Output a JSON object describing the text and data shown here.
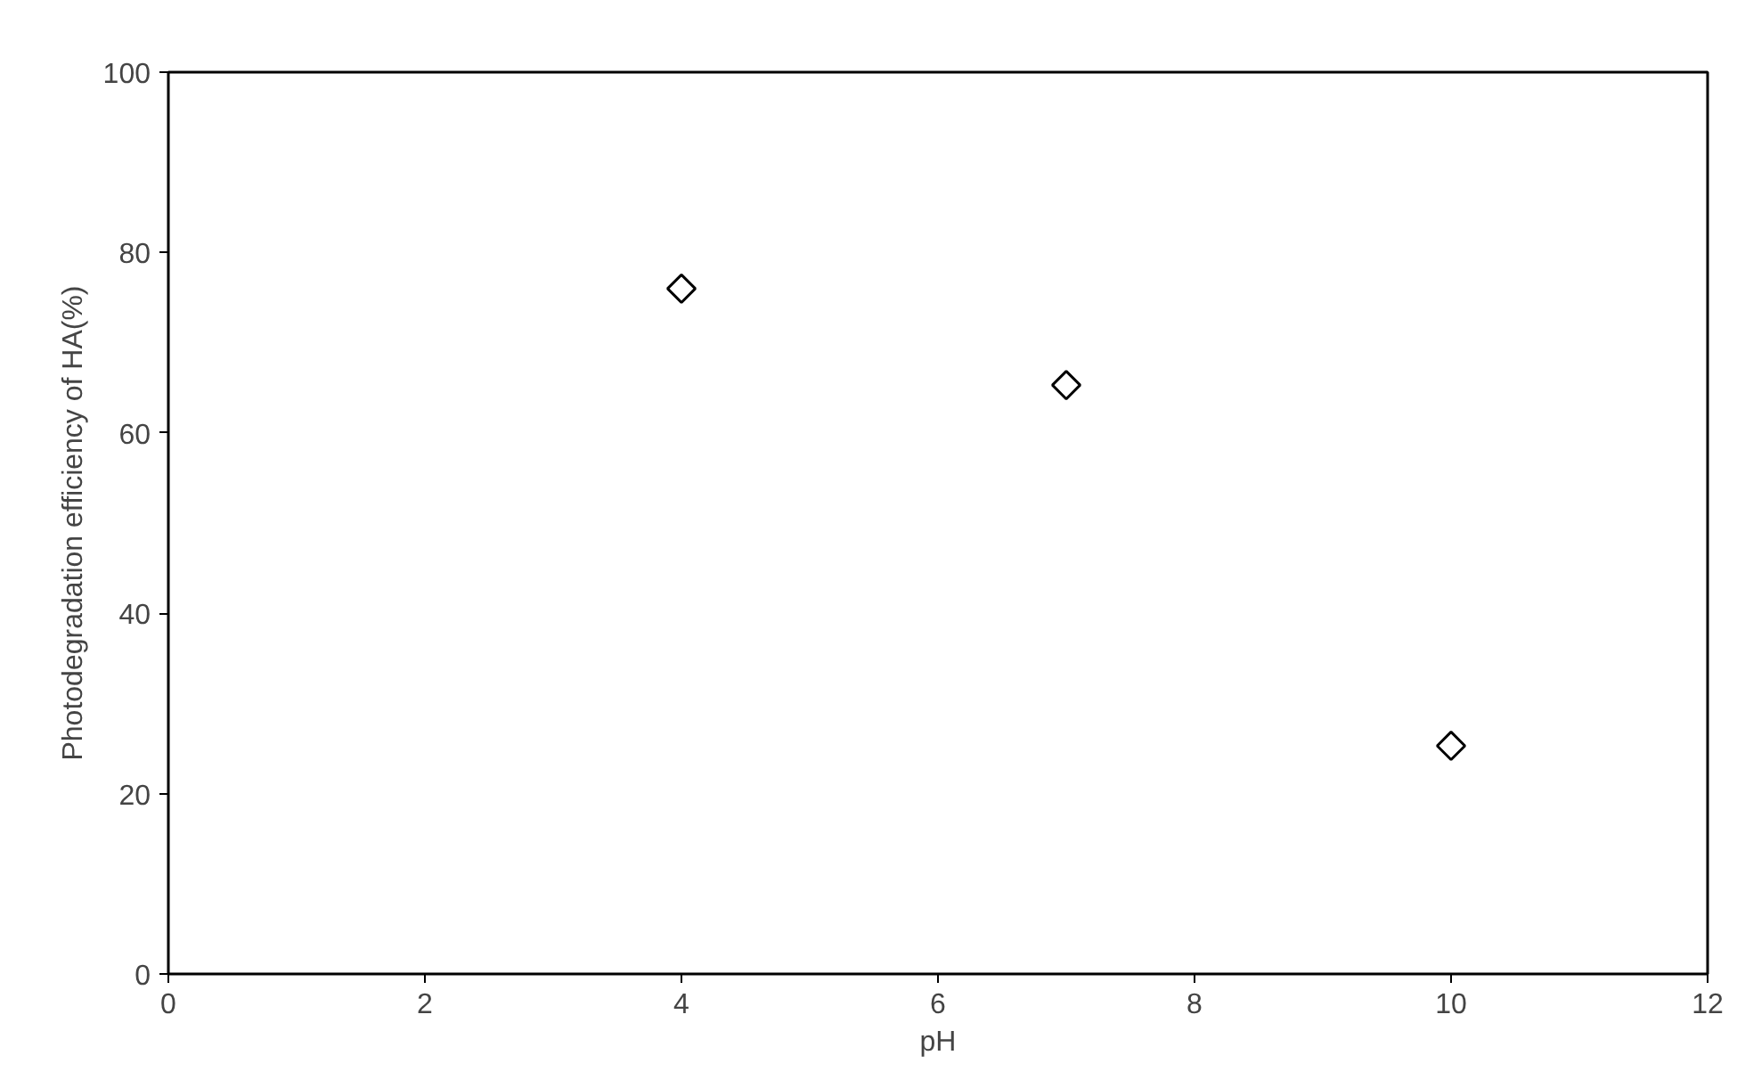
{
  "chart_data": {
    "type": "scatter",
    "xlabel": "pH",
    "ylabel": "Photodegradation efficiency of HA(%)",
    "x": [
      4,
      7,
      10
    ],
    "series": [
      {
        "color": "#000000",
        "values": [
          76,
          65.3,
          25.3
        ]
      }
    ],
    "xlim": [
      0,
      12
    ],
    "xticks": [
      0,
      2,
      4,
      6,
      8,
      10,
      12
    ],
    "ylim": [
      0,
      100
    ],
    "yticks": [
      0,
      20,
      40,
      60,
      80,
      100
    ],
    "grid": false,
    "marker": "diamond"
  }
}
